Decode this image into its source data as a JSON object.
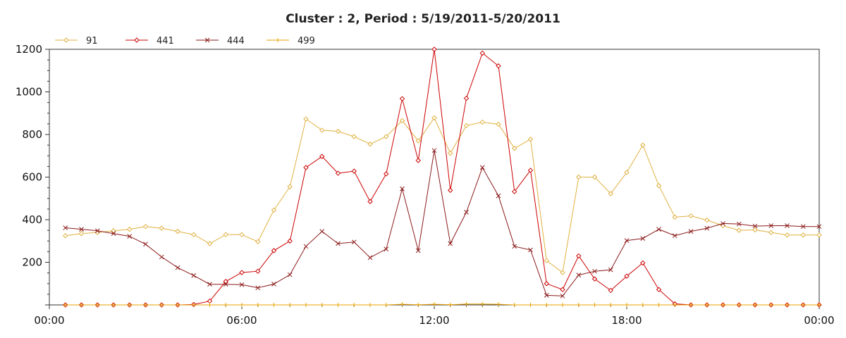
{
  "chart_data": {
    "type": "line",
    "title": "Cluster : 2, Period : 5/19/2011-5/20/2011",
    "xlabel": "",
    "ylabel": "",
    "x_ticks": [
      "00:00",
      "06:00",
      "12:00",
      "18:00",
      "00:00"
    ],
    "y_ticks": [
      "200",
      "400",
      "600",
      "800",
      "1000",
      "1200"
    ],
    "xlim_hours": [
      0,
      24
    ],
    "ylim": [
      0,
      1200
    ],
    "legend_position": "top-left",
    "grid": true,
    "series": [
      {
        "name": "91",
        "color": "#E0B040",
        "marker": "diamond",
        "points": [
          [
            0.5,
            325
          ],
          [
            1.0,
            335
          ],
          [
            1.5,
            340
          ],
          [
            2.0,
            348
          ],
          [
            2.5,
            355
          ],
          [
            3.0,
            368
          ],
          [
            3.5,
            360
          ],
          [
            4.0,
            345
          ],
          [
            4.5,
            330
          ],
          [
            5.0,
            288
          ],
          [
            5.5,
            330
          ],
          [
            6.0,
            330
          ],
          [
            6.5,
            297
          ],
          [
            7.0,
            445
          ],
          [
            7.5,
            555
          ],
          [
            8.0,
            873
          ],
          [
            8.5,
            820
          ],
          [
            9.0,
            815
          ],
          [
            9.5,
            790
          ],
          [
            10.0,
            755
          ],
          [
            10.5,
            790
          ],
          [
            11.0,
            865
          ],
          [
            11.5,
            770
          ],
          [
            12.0,
            878
          ],
          [
            12.5,
            712
          ],
          [
            13.0,
            842
          ],
          [
            13.5,
            858
          ],
          [
            14.0,
            848
          ],
          [
            14.5,
            735
          ],
          [
            15.0,
            778
          ],
          [
            15.5,
            208
          ],
          [
            16.0,
            152
          ],
          [
            16.5,
            600
          ],
          [
            17.0,
            600
          ],
          [
            17.5,
            522
          ],
          [
            18.0,
            622
          ],
          [
            18.5,
            750
          ],
          [
            19.0,
            560
          ],
          [
            19.5,
            412
          ],
          [
            20.0,
            418
          ],
          [
            20.5,
            398
          ],
          [
            21.0,
            372
          ],
          [
            21.5,
            350
          ],
          [
            22.0,
            352
          ],
          [
            22.5,
            340
          ],
          [
            23.0,
            328
          ],
          [
            23.5,
            328
          ],
          [
            24.0,
            328
          ]
        ]
      },
      {
        "name": "441",
        "color": "#CC0000",
        "marker": "diamond",
        "points": [
          [
            0.5,
            0
          ],
          [
            1.0,
            0
          ],
          [
            1.5,
            0
          ],
          [
            2.0,
            0
          ],
          [
            2.5,
            0
          ],
          [
            3.0,
            0
          ],
          [
            3.5,
            0
          ],
          [
            4.0,
            0
          ],
          [
            4.5,
            2
          ],
          [
            5.0,
            18
          ],
          [
            5.5,
            110
          ],
          [
            6.0,
            152
          ],
          [
            6.5,
            158
          ],
          [
            7.0,
            255
          ],
          [
            7.5,
            300
          ],
          [
            8.0,
            645
          ],
          [
            8.5,
            697
          ],
          [
            9.0,
            618
          ],
          [
            9.5,
            628
          ],
          [
            10.0,
            485
          ],
          [
            10.5,
            615
          ],
          [
            11.0,
            968
          ],
          [
            11.5,
            678
          ],
          [
            12.0,
            1218
          ],
          [
            12.5,
            538
          ],
          [
            13.0,
            970
          ],
          [
            13.5,
            1182
          ],
          [
            14.0,
            1122
          ],
          [
            14.5,
            532
          ],
          [
            15.0,
            632
          ],
          [
            15.5,
            100
          ],
          [
            16.0,
            72
          ],
          [
            16.5,
            230
          ],
          [
            17.0,
            122
          ],
          [
            17.5,
            68
          ],
          [
            18.0,
            135
          ],
          [
            18.5,
            197
          ],
          [
            19.0,
            72
          ],
          [
            19.5,
            5
          ],
          [
            20.0,
            0
          ],
          [
            20.5,
            0
          ],
          [
            21.0,
            0
          ],
          [
            21.5,
            0
          ],
          [
            22.0,
            0
          ],
          [
            22.5,
            0
          ],
          [
            23.0,
            0
          ],
          [
            23.5,
            0
          ],
          [
            24.0,
            0
          ]
        ]
      },
      {
        "name": "444",
        "color": "#8B1A1A",
        "marker": "x",
        "points": [
          [
            0.5,
            362
          ],
          [
            1.0,
            355
          ],
          [
            1.5,
            348
          ],
          [
            2.0,
            335
          ],
          [
            2.5,
            322
          ],
          [
            3.0,
            285
          ],
          [
            3.5,
            225
          ],
          [
            4.0,
            175
          ],
          [
            4.5,
            138
          ],
          [
            5.0,
            97
          ],
          [
            5.5,
            97
          ],
          [
            6.0,
            95
          ],
          [
            6.5,
            80
          ],
          [
            7.0,
            98
          ],
          [
            7.5,
            142
          ],
          [
            8.0,
            275
          ],
          [
            8.5,
            345
          ],
          [
            9.0,
            288
          ],
          [
            9.5,
            295
          ],
          [
            10.0,
            222
          ],
          [
            10.5,
            262
          ],
          [
            11.0,
            545
          ],
          [
            11.5,
            255
          ],
          [
            12.0,
            725
          ],
          [
            12.5,
            288
          ],
          [
            13.0,
            435
          ],
          [
            13.5,
            645
          ],
          [
            14.0,
            512
          ],
          [
            14.5,
            275
          ],
          [
            15.0,
            258
          ],
          [
            15.5,
            45
          ],
          [
            16.0,
            42
          ],
          [
            16.5,
            140
          ],
          [
            17.0,
            158
          ],
          [
            17.5,
            165
          ],
          [
            18.0,
            302
          ],
          [
            18.5,
            312
          ],
          [
            19.0,
            355
          ],
          [
            19.5,
            325
          ],
          [
            20.0,
            345
          ],
          [
            20.5,
            360
          ],
          [
            21.0,
            382
          ],
          [
            21.5,
            380
          ],
          [
            22.0,
            370
          ],
          [
            22.5,
            372
          ],
          [
            23.0,
            372
          ],
          [
            23.5,
            368
          ],
          [
            24.0,
            368
          ]
        ]
      },
      {
        "name": "499",
        "color": "#E8A000",
        "marker": "plus",
        "points": [
          [
            0.5,
            0
          ],
          [
            1.0,
            0
          ],
          [
            1.5,
            0
          ],
          [
            2.0,
            0
          ],
          [
            2.5,
            0
          ],
          [
            3.0,
            0
          ],
          [
            3.5,
            0
          ],
          [
            4.0,
            0
          ],
          [
            4.5,
            0
          ],
          [
            5.0,
            0
          ],
          [
            5.5,
            0
          ],
          [
            6.0,
            0
          ],
          [
            6.5,
            0
          ],
          [
            7.0,
            0
          ],
          [
            7.5,
            0
          ],
          [
            8.0,
            0
          ],
          [
            8.5,
            0
          ],
          [
            9.0,
            0
          ],
          [
            9.5,
            0
          ],
          [
            10.0,
            0
          ],
          [
            10.5,
            0
          ],
          [
            11.0,
            3
          ],
          [
            11.5,
            1
          ],
          [
            12.0,
            3
          ],
          [
            12.5,
            1
          ],
          [
            13.0,
            4
          ],
          [
            13.5,
            4
          ],
          [
            14.0,
            3
          ],
          [
            14.5,
            0
          ],
          [
            15.0,
            0
          ],
          [
            15.5,
            0
          ],
          [
            16.0,
            0
          ],
          [
            16.5,
            0
          ],
          [
            17.0,
            0
          ],
          [
            17.5,
            0
          ],
          [
            18.0,
            0
          ],
          [
            18.5,
            0
          ],
          [
            19.0,
            0
          ],
          [
            19.5,
            0
          ],
          [
            20.0,
            0
          ],
          [
            20.5,
            0
          ],
          [
            21.0,
            0
          ],
          [
            21.5,
            0
          ],
          [
            22.0,
            0
          ],
          [
            22.5,
            0
          ],
          [
            23.0,
            0
          ],
          [
            23.5,
            0
          ],
          [
            24.0,
            0
          ]
        ]
      }
    ]
  }
}
